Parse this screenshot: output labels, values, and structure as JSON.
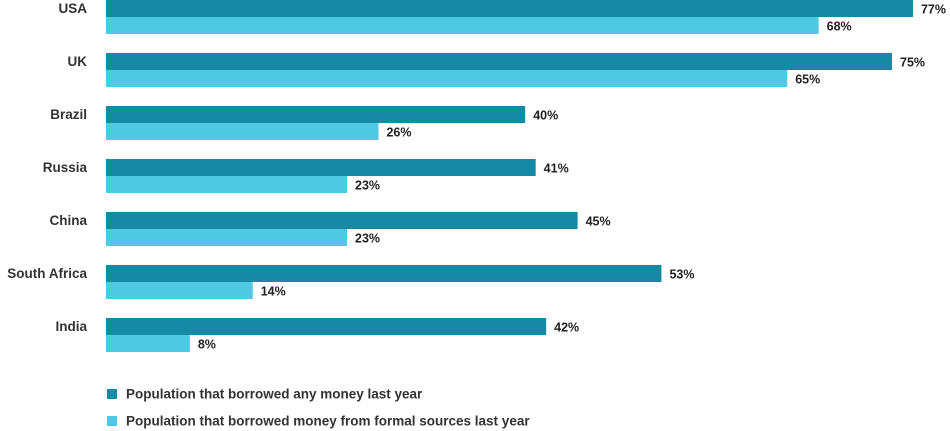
{
  "chart_data": {
    "type": "bar",
    "orientation": "horizontal",
    "categories": [
      "USA",
      "UK",
      "Brazil",
      "Russia",
      "China",
      "South Africa",
      "India"
    ],
    "series": [
      {
        "name": "Population that borrowed any money last year",
        "values": [
          77,
          75,
          40,
          41,
          45,
          53,
          42
        ],
        "labels": [
          "77%",
          "75%",
          "40%",
          "41%",
          "45%",
          "53%",
          "42%"
        ],
        "color": "#168aa4"
      },
      {
        "name": "Population that borrowed money from formal sources last year",
        "values": [
          68,
          65,
          26,
          23,
          23,
          14,
          8
        ],
        "labels": [
          "68%",
          "65%",
          "26%",
          "23%",
          "23%",
          "14%",
          "8%"
        ],
        "color": "#4ec8e3"
      }
    ],
    "xlim": [
      0,
      100
    ],
    "grid": false,
    "legend_position": "bottom-left"
  }
}
